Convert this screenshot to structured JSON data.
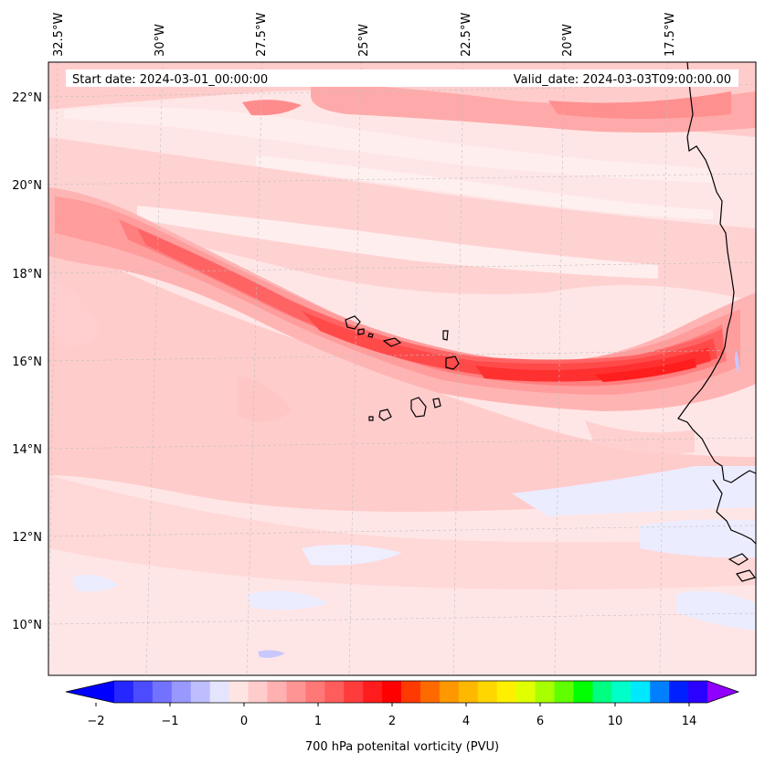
{
  "header": {
    "start_date": "Start date: 2024-03-01_00:00:00",
    "valid_date": "Valid_date: 2024-03-03T09:00:00.00"
  },
  "map": {
    "lon_labels": [
      "32.5°W",
      "30°W",
      "27.5°W",
      "25°W",
      "22.5°W",
      "20°W",
      "17.5°W"
    ],
    "lat_labels": [
      "22°N",
      "20°N",
      "18°N",
      "16°N",
      "14°N",
      "12°N",
      "10°N"
    ],
    "extent": {
      "lon_min": -33.0,
      "lon_max": -15.3,
      "lat_min": 9.0,
      "lat_max": 22.7
    },
    "field": "700 hPa potential vorticity"
  },
  "colorbar": {
    "title": "700 hPa potenital vorticity (PVU)",
    "tick_labels": [
      "−2",
      "−1",
      "0",
      "1",
      "2",
      "4",
      "6",
      "10",
      "14"
    ],
    "colors": [
      "#0000ff",
      "#2626ff",
      "#4c4cff",
      "#7272ff",
      "#9898ff",
      "#bebeff",
      "#e4e4ff",
      "#ffe4e4",
      "#ffcccc",
      "#ffb0b0",
      "#ff9494",
      "#ff7878",
      "#ff5c5c",
      "#ff3c3c",
      "#ff1c1c",
      "#ff0000",
      "#ff3a00",
      "#ff6a00",
      "#ff9800",
      "#ffb800",
      "#ffd600",
      "#fff000",
      "#e0ff00",
      "#a8ff00",
      "#60ff00",
      "#00ff00",
      "#00ff80",
      "#00ffc8",
      "#00e8ff",
      "#0080ff",
      "#0020ff",
      "#2a00ff",
      "#9000ff"
    ]
  }
}
